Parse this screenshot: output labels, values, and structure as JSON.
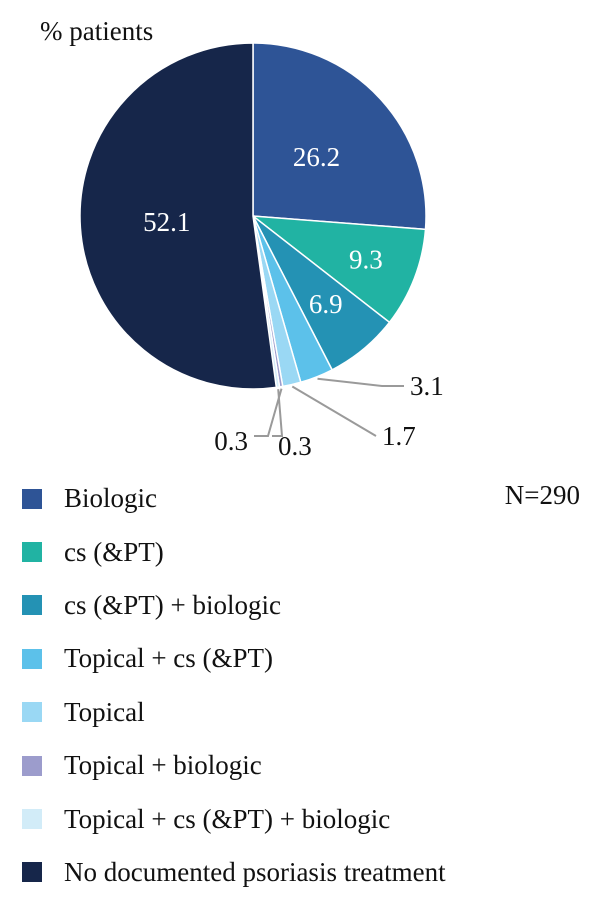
{
  "chart_data": {
    "type": "pie",
    "ylabel": "% patients",
    "annotation": "N=290",
    "slices": [
      {
        "label": "Biologic",
        "value": 26.2,
        "color": "#2e5496"
      },
      {
        "label": "cs (&PT)",
        "value": 9.3,
        "color": "#21b3a3"
      },
      {
        "label": "cs (&PT) + biologic",
        "value": 6.9,
        "color": "#2492b4"
      },
      {
        "label": "Topical + cs (&PT)",
        "value": 3.1,
        "color": "#5cc1ea"
      },
      {
        "label": "Topical",
        "value": 1.7,
        "color": "#9ad8f4"
      },
      {
        "label": "Topical + biologic",
        "value": 0.3,
        "color": "#9c9ccc"
      },
      {
        "label": "Topical + cs (&PT) + biologic",
        "value": 0.3,
        "color": "#d2ecf8"
      },
      {
        "label": "No documented psoriasis treatment",
        "value": 52.1,
        "color": "#16264a"
      }
    ],
    "value_labels": [
      "26.2",
      "9.3",
      "6.9",
      "3.1",
      "1.7",
      "0.3",
      "0.3",
      "52.1"
    ]
  }
}
